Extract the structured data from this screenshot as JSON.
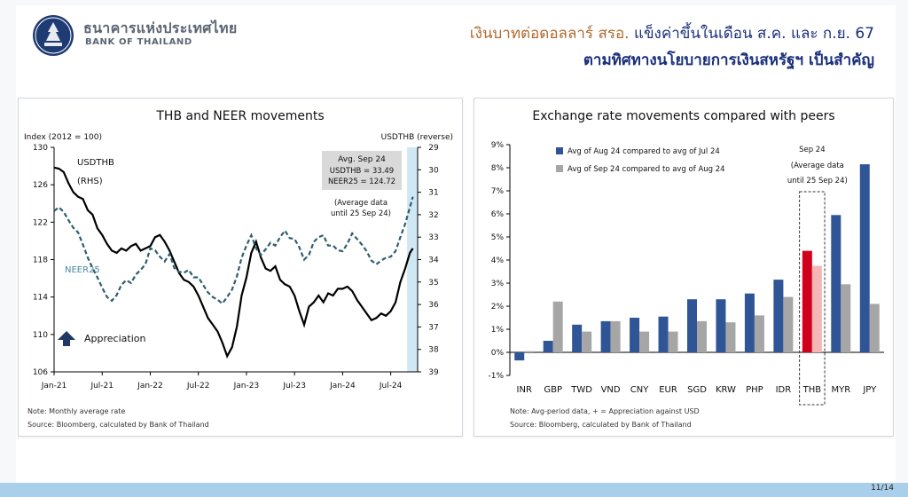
{
  "header": {
    "bank_name_th": "ธนาคารแห่งประเทศไทย",
    "bank_name_en": "BANK OF THAILAND",
    "headline_part1": "เงินบาทต่อดอลลาร์ สรอ.",
    "headline_part2": " แข็งค่าขึ้นในเดือน ส.ค. และ ก.ย. 67",
    "headline_line2": "ตามทิศทางนโยบายการเงินสหรัฐฯ เป็นสำคัญ"
  },
  "colors": {
    "usdthb_line": "#000000",
    "neer_line": "#2e5e6e",
    "bar_blue": "#2f5597",
    "bar_gray": "#a6a6a6",
    "thb_red": "#d0021b",
    "thb_pink": "#f4b6b6",
    "highlight_band": "#cfe8f3"
  },
  "chart_data": [
    {
      "type": "line",
      "title": "THB and NEER movements",
      "ylabel_left": "Index (2012 = 100)",
      "ylabel_right": "USDTHB (reverse)",
      "x_ticks": [
        "Jan-21",
        "Jul-21",
        "Jan-22",
        "Jul-22",
        "Jan-23",
        "Jul-23",
        "Jan-24",
        "Jul-24"
      ],
      "ylim_left": [
        106,
        130
      ],
      "y_ticks_left": [
        106,
        110,
        114,
        118,
        122,
        126,
        130
      ],
      "ylim_right": [
        39,
        29
      ],
      "y_ticks_right": [
        29,
        30,
        31,
        32,
        33,
        34,
        35,
        36,
        37,
        38,
        39
      ],
      "right_axis_reversed": true,
      "highlight_band": "Sep-24",
      "series": [
        {
          "name": "USDTHB",
          "label": "USDTHB",
          "label_sub": "(RHS)",
          "axis": "right",
          "style": "solid",
          "x": [
            2021.0,
            2021.05,
            2021.1,
            2021.15,
            2021.2,
            2021.25,
            2021.3,
            2021.35,
            2021.4,
            2021.45,
            2021.5,
            2021.55,
            2021.6,
            2021.65,
            2021.7,
            2021.75,
            2021.8,
            2021.85,
            2021.9,
            2021.95,
            2022.0,
            2022.05,
            2022.1,
            2022.15,
            2022.2,
            2022.25,
            2022.3,
            2022.35,
            2022.4,
            2022.45,
            2022.5,
            2022.55,
            2022.6,
            2022.65,
            2022.7,
            2022.75,
            2022.8,
            2022.85,
            2022.9,
            2022.95,
            2023.0,
            2023.05,
            2023.1,
            2023.15,
            2023.2,
            2023.25,
            2023.3,
            2023.35,
            2023.4,
            2023.45,
            2023.5,
            2023.55,
            2023.6,
            2023.65,
            2023.7,
            2023.75,
            2023.8,
            2023.85,
            2023.9,
            2023.95,
            2024.0,
            2024.05,
            2024.1,
            2024.15,
            2024.2,
            2024.25,
            2024.3,
            2024.35,
            2024.4,
            2024.45,
            2024.5,
            2024.55,
            2024.6,
            2024.65,
            2024.7,
            2024.73
          ],
          "values": [
            29.9,
            29.95,
            30.1,
            30.6,
            31.0,
            31.2,
            31.3,
            31.8,
            32.0,
            32.6,
            32.9,
            33.3,
            33.6,
            33.7,
            33.5,
            33.6,
            33.4,
            33.3,
            33.6,
            33.5,
            33.4,
            33.0,
            32.9,
            33.2,
            33.6,
            34.1,
            34.6,
            34.9,
            35.0,
            35.2,
            35.6,
            36.1,
            36.6,
            36.9,
            37.2,
            37.7,
            38.3,
            37.9,
            37.0,
            35.6,
            34.8,
            33.7,
            33.2,
            33.9,
            34.4,
            34.5,
            34.3,
            34.9,
            35.1,
            35.2,
            35.6,
            36.3,
            36.9,
            36.1,
            35.9,
            35.6,
            35.9,
            35.5,
            35.6,
            35.3,
            35.3,
            35.2,
            35.4,
            35.8,
            36.1,
            36.4,
            36.7,
            36.6,
            36.4,
            36.5,
            36.3,
            35.9,
            35.0,
            34.4,
            33.7,
            33.5
          ]
        },
        {
          "name": "NEER25",
          "label": "NEER25",
          "axis": "left",
          "style": "dashed",
          "x": [
            2021.0,
            2021.05,
            2021.1,
            2021.15,
            2021.2,
            2021.25,
            2021.3,
            2021.35,
            2021.4,
            2021.45,
            2021.5,
            2021.55,
            2021.6,
            2021.65,
            2021.7,
            2021.75,
            2021.8,
            2021.85,
            2021.9,
            2021.95,
            2022.0,
            2022.05,
            2022.1,
            2022.15,
            2022.2,
            2022.25,
            2022.3,
            2022.35,
            2022.4,
            2022.45,
            2022.5,
            2022.55,
            2022.6,
            2022.65,
            2022.7,
            2022.75,
            2022.8,
            2022.85,
            2022.9,
            2022.95,
            2023.0,
            2023.05,
            2023.1,
            2023.15,
            2023.2,
            2023.25,
            2023.3,
            2023.35,
            2023.4,
            2023.45,
            2023.5,
            2023.55,
            2023.6,
            2023.65,
            2023.7,
            2023.75,
            2023.8,
            2023.85,
            2023.9,
            2023.95,
            2024.0,
            2024.05,
            2024.1,
            2024.15,
            2024.2,
            2024.25,
            2024.3,
            2024.35,
            2024.4,
            2024.45,
            2024.5,
            2024.55,
            2024.6,
            2024.65,
            2024.7,
            2024.73
          ],
          "values": [
            123.2,
            123.6,
            123.1,
            122.2,
            121.4,
            120.9,
            119.6,
            118.2,
            117.1,
            116.1,
            115.0,
            114.0,
            113.6,
            114.2,
            115.3,
            115.8,
            115.5,
            116.4,
            116.9,
            117.5,
            119.2,
            119.0,
            118.3,
            117.8,
            118.6,
            117.1,
            116.7,
            116.6,
            116.9,
            116.1,
            116.1,
            115.3,
            114.5,
            114.0,
            113.7,
            113.3,
            114.0,
            114.8,
            116.2,
            118.2,
            119.5,
            120.6,
            119.2,
            118.5,
            119.1,
            119.8,
            119.5,
            120.4,
            121.1,
            120.3,
            120.2,
            119.3,
            118.0,
            118.5,
            119.9,
            120.4,
            120.6,
            119.5,
            119.5,
            119.0,
            118.9,
            119.7,
            120.8,
            120.2,
            119.6,
            118.9,
            117.9,
            117.5,
            117.9,
            118.2,
            118.3,
            118.9,
            120.4,
            121.8,
            123.6,
            124.72
          ]
        }
      ],
      "annotations": {
        "callout_title": "Avg. Sep 24",
        "callout_usdthb": "USDTHB = 33.49",
        "callout_neer": "NEER25 = 124.72",
        "avg_note_line1": "(Average data",
        "avg_note_line2": "until 25 Sep 24)",
        "appreciation": "Appreciation"
      },
      "note": "Note: Monthly average rate",
      "source": "Source: Bloomberg, calculated by Bank of Thailand"
    },
    {
      "type": "bar",
      "title": "Exchange rate movements compared with peers",
      "categories": [
        "INR",
        "GBP",
        "TWD",
        "VND",
        "CNY",
        "EUR",
        "SGD",
        "KRW",
        "PHP",
        "IDR",
        "THB",
        "MYR",
        "JPY"
      ],
      "ylim": [
        -1,
        9
      ],
      "y_ticks": [
        "-1%",
        "0%",
        "1%",
        "2%",
        "3%",
        "4%",
        "5%",
        "6%",
        "7%",
        "8%",
        "9%"
      ],
      "series": [
        {
          "name": "Avg of Aug 24 compared to avg of Jul 24",
          "values": [
            -0.35,
            0.5,
            1.2,
            1.35,
            1.5,
            1.55,
            2.3,
            2.3,
            2.55,
            3.15,
            4.4,
            5.95,
            8.15
          ]
        },
        {
          "name": "Avg of Sep 24 compared to avg of Aug 24",
          "values": [
            0.05,
            2.2,
            0.9,
            1.35,
            0.9,
            0.9,
            1.35,
            1.3,
            1.6,
            2.4,
            3.75,
            2.95,
            2.1
          ]
        }
      ],
      "highlight_category": "THB",
      "highlight_label_1": "Sep 24",
      "highlight_label_2": "(Average data",
      "highlight_label_3": "until 25 Sep 24)",
      "note": "Note: Avg-period data, + = Appreciation against USD",
      "source": "Source: Bloomberg, calculated by Bank of Thailand"
    }
  ],
  "footer": {
    "page": "11/14"
  }
}
